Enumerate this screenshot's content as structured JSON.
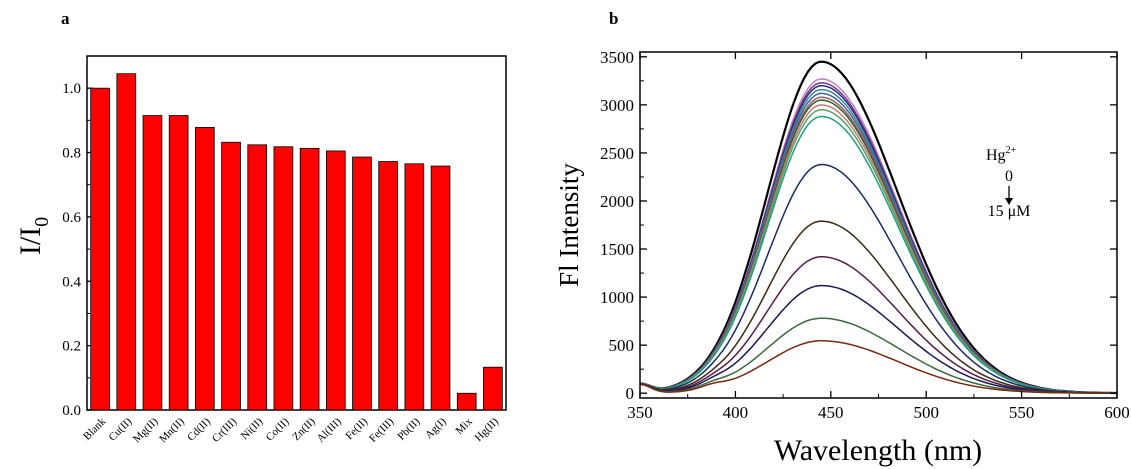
{
  "chart_data": [
    {
      "panel_label": "a",
      "type": "bar",
      "categories": [
        "Blank",
        "Cu(II)",
        "Mg(II)",
        "Mn(II)",
        "Cd(II)",
        "Cr(III)",
        "Ni(II)",
        "Co(II)",
        "Zn(II)",
        "Al(III)",
        "Fe(II)",
        "Fe(III)",
        "Pb(II)",
        "Ag(I)",
        "Mix",
        "Hg(II)"
      ],
      "values": [
        1.0,
        1.045,
        0.915,
        0.915,
        0.878,
        0.832,
        0.824,
        0.818,
        0.813,
        0.805,
        0.786,
        0.772,
        0.765,
        0.758,
        0.052,
        0.133
      ],
      "xlabel": "",
      "ylabel": "I/I",
      "ylabel_subscript": "0",
      "ylim": [
        0,
        1.1
      ],
      "yticks": [
        "0.0",
        "0.2",
        "0.4",
        "0.6",
        "0.8",
        "1.0"
      ],
      "bar_color": "#ff0000",
      "grid": false
    },
    {
      "panel_label": "b",
      "type": "line",
      "xlabel": "Wavelength (nm)",
      "ylabel": "Fl Intensity",
      "xlim": [
        350,
        600
      ],
      "ylim": [
        -50,
        3550
      ],
      "xticks": [
        "350",
        "400",
        "450",
        "500",
        "550",
        "600"
      ],
      "yticks": [
        "0",
        "500",
        "1000",
        "1500",
        "2000",
        "2500",
        "3000",
        "3500"
      ],
      "peak_x": 445,
      "annotation": {
        "species": "Hg",
        "charge": "2+",
        "start": "0",
        "end": "15 μM"
      },
      "series_peaks": [
        3450,
        3270,
        3230,
        3200,
        3160,
        3120,
        3080,
        3050,
        3000,
        2950,
        2880,
        2380,
        1790,
        1420,
        1120,
        780,
        545
      ],
      "series_colors": [
        "#000000",
        "#c080c0",
        "#7a3a7a",
        "#2a2a8a",
        "#3a8a8a",
        "#4060a0",
        "#a06060",
        "#306030",
        "#c07a7a",
        "#60a060",
        "#20a080",
        "#1a2a6a",
        "#3a2a10",
        "#5a1a4a",
        "#1a1a5a",
        "#3a6a3a",
        "#7a2a10"
      ],
      "grid": false
    }
  ]
}
